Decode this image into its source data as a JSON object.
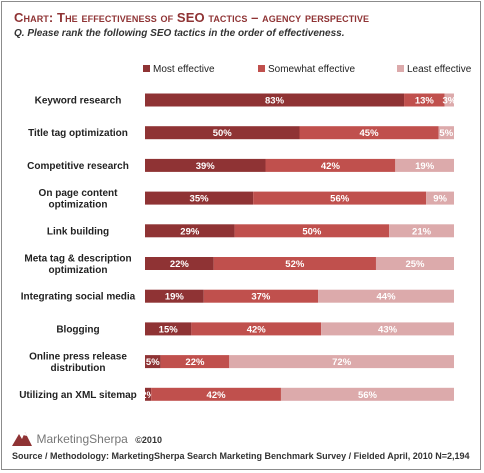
{
  "header": {
    "title_lead": "Chart: The effectiveness of SEO tactics – agency perspective",
    "subtitle": "Q. Please rank the following SEO tactics in the order of effectiveness."
  },
  "footer": {
    "brand": "MarketingSherpa",
    "copyright": "©2010",
    "source": "Source / Methodology: MarketingSherpa Search Marketing Benchmark Survey / Fielded April, 2010 N=2,194"
  },
  "colors": {
    "most_effective": "#8f3334",
    "somewhat_effective": "#c0504d",
    "least_effective": "#dcaaab",
    "title": "#8f3334"
  },
  "chart_data": {
    "type": "bar",
    "orientation": "horizontal",
    "stacked": true,
    "value_unit": "%",
    "legend_position": "top-right",
    "categories": [
      "Keyword research",
      "Title tag optimization",
      "Competitive research",
      "On page content optimization",
      "Link building",
      "Meta tag & description optimization",
      "Integrating social media",
      "Blogging",
      "Online press release distribution",
      "Utilizing an XML sitemap"
    ],
    "series": [
      {
        "name": "Most effective",
        "values": [
          83,
          50,
          39,
          35,
          29,
          22,
          19,
          15,
          5,
          2
        ]
      },
      {
        "name": "Somewhat effective",
        "values": [
          13,
          45,
          42,
          56,
          50,
          52,
          37,
          42,
          22,
          42
        ]
      },
      {
        "name": "Least effective",
        "values": [
          3,
          5,
          19,
          9,
          21,
          25,
          44,
          43,
          72,
          56
        ]
      }
    ],
    "data_labels": [
      [
        "83%",
        "13%",
        "3%"
      ],
      [
        "50%",
        "45%",
        "5%"
      ],
      [
        "39%",
        "42%",
        "19%"
      ],
      [
        "35%",
        "56%",
        "9%"
      ],
      [
        "29%",
        "50%",
        "21%"
      ],
      [
        "22%",
        "52%",
        "25%"
      ],
      [
        "19%",
        "37%",
        "44%"
      ],
      [
        "15%",
        "42%",
        "43%"
      ],
      [
        "5%",
        "22%",
        "72%"
      ],
      [
        "2%",
        "42%",
        "56%"
      ]
    ],
    "xlim": [
      0,
      100
    ]
  }
}
